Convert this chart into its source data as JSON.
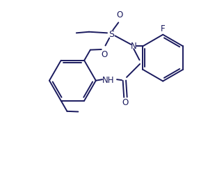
{
  "background_color": "#ffffff",
  "line_color": "#1a1a5e",
  "line_width": 1.4,
  "figsize": [
    3.22,
    2.51
  ],
  "dpi": 100,
  "xlim": [
    0,
    10
  ],
  "ylim": [
    0,
    7.8
  ]
}
